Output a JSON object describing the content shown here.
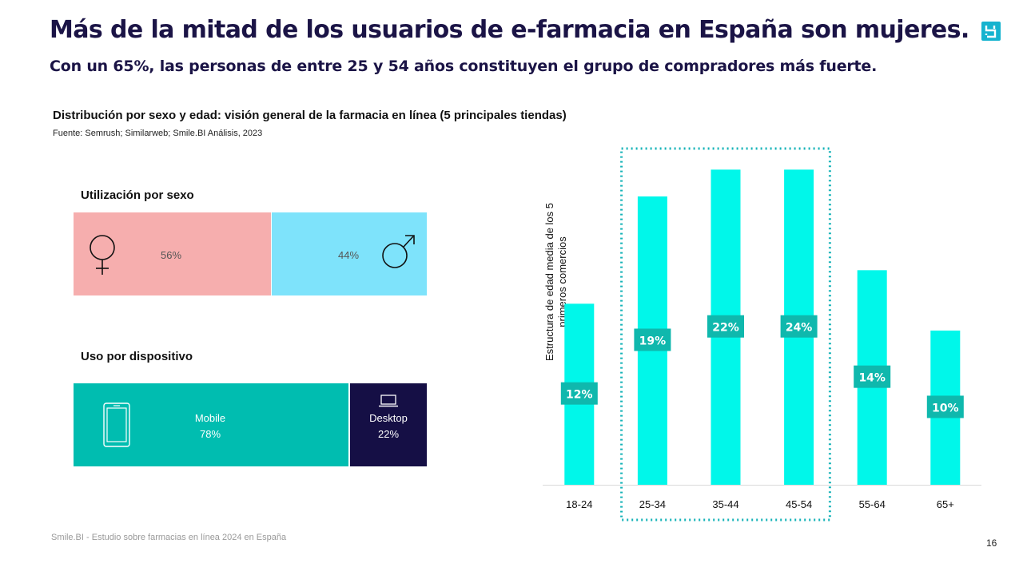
{
  "header": {
    "title": "Más de la mitad de los usuarios de e-farmacia en España son mujeres.",
    "subtitle": "Con un 65%, las personas de entre 25 y 54 años constituyen el grupo de compradores más fuerte."
  },
  "section": {
    "chart_title": "Distribución por sexo y edad: visión general de la farmacia en línea (5 principales tiendas)",
    "source": "Fuente:  Semrush;  Similarweb;  Smile.BI Análisis,  2023"
  },
  "gender": {
    "label": "Utilización por sexo",
    "female": {
      "value": "56%",
      "share": 56,
      "color": "#f6aeae",
      "icon": "female-symbol-icon"
    },
    "male": {
      "value": "44%",
      "share": 44,
      "color": "#7ee3fb",
      "icon": "male-symbol-icon"
    }
  },
  "device": {
    "label": "Uso por dispositivo",
    "mobile": {
      "name": "Mobile",
      "value": "78%",
      "share": 78,
      "color": "#00bdb0",
      "icon": "smartphone-icon"
    },
    "desktop": {
      "name": "Desktop",
      "value": "22%",
      "share": 22,
      "color": "#150f45",
      "icon": "laptop-icon"
    }
  },
  "chart_data": {
    "type": "bar",
    "title": "",
    "xlabel": "",
    "ylabel": "Estructura de edad media de los 5 primeros comercios",
    "categories": [
      "18-24",
      "25-34",
      "35-44",
      "45-54",
      "55-64",
      "65+"
    ],
    "values": [
      12,
      19,
      22,
      24,
      14,
      10
    ],
    "value_labels": [
      "12%",
      "19%",
      "22%",
      "24%",
      "14%",
      "10%"
    ],
    "bar_heights": [
      13.5,
      21.5,
      23.5,
      23.5,
      16,
      11.5
    ],
    "ylim": [
      0,
      24
    ],
    "highlight": [
      "25-34",
      "35-44",
      "45-54"
    ],
    "bar_color": "#00f7ea",
    "label_color": "#0fb8ad"
  },
  "footer": {
    "text": "Smile.BI - Estudio sobre farmacias en línea 2024 en España",
    "page": "16"
  }
}
